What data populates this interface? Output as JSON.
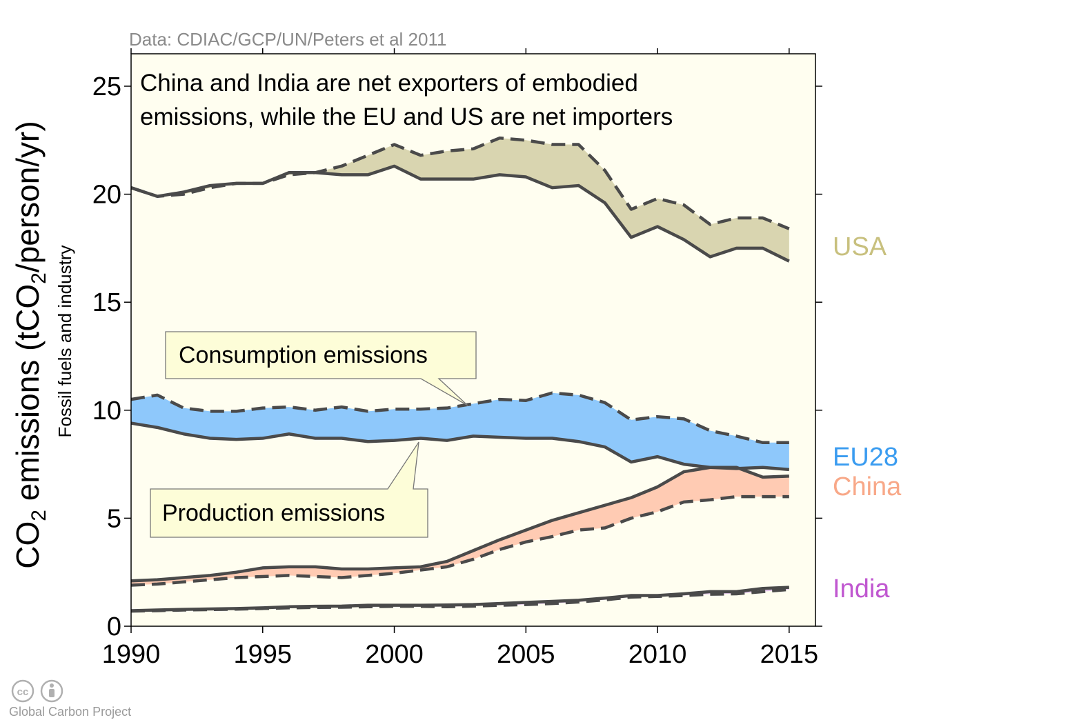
{
  "source_note": "Data: CDIAC/GCP/UN/Peters et al 2011",
  "annotation_line1": "China and India are net exporters of embodied",
  "annotation_line2": "emissions, while the EU and US are net importers",
  "callout_consumption": "Consumption emissions",
  "callout_production": "Production emissions",
  "ylabel": {
    "prefix": "CO",
    "sub": "2",
    "middle": " emissions (tCO",
    "sub2": "2",
    "suffix": "/person/yr)",
    "secondary": "Fossil fuels and industry"
  },
  "credit": "Global Carbon Project",
  "icons": [
    "creative-commons-icon",
    "attribution-icon"
  ],
  "colors": {
    "plot_background": "#fffef0",
    "line": "#4a4a4a",
    "usa_fill": "#d9d5b0",
    "eu_fill": "#8ec8fb",
    "china_fill": "#ffcbb3",
    "overlap_fill": "#c9b3c0",
    "usa_label": "#c8c07e",
    "eu_label": "#3a9cf0",
    "china_label": "#f8a888",
    "india_label": "#c057d0"
  },
  "chart_data": {
    "type": "area",
    "x": [
      1990,
      1991,
      1992,
      1993,
      1994,
      1995,
      1996,
      1997,
      1998,
      1999,
      2000,
      2001,
      2002,
      2003,
      2004,
      2005,
      2006,
      2007,
      2008,
      2009,
      2010,
      2011,
      2012,
      2013,
      2014,
      2015
    ],
    "xlim": [
      1990,
      2016
    ],
    "ylim": [
      0,
      26.5
    ],
    "xticks": [
      1990,
      1995,
      2000,
      2005,
      2010,
      2015
    ],
    "yticks": [
      0,
      5,
      10,
      15,
      20,
      25
    ],
    "series": [
      {
        "name": "USA",
        "color": "#c8c07e",
        "fill": "#d9d5b0",
        "production": [
          20.3,
          19.9,
          20.1,
          20.4,
          20.5,
          20.5,
          21.0,
          21.0,
          20.9,
          20.9,
          21.3,
          20.7,
          20.7,
          20.7,
          20.9,
          20.8,
          20.3,
          20.4,
          19.6,
          18.0,
          18.5,
          17.9,
          17.1,
          17.5,
          17.5,
          16.9
        ],
        "consumption": [
          20.3,
          19.9,
          20.0,
          20.3,
          20.5,
          20.5,
          20.9,
          21.0,
          21.3,
          21.8,
          22.3,
          21.8,
          22.0,
          22.1,
          22.6,
          22.5,
          22.3,
          22.3,
          21.1,
          19.3,
          19.8,
          19.5,
          18.6,
          18.9,
          18.9,
          18.4
        ]
      },
      {
        "name": "EU28",
        "color": "#3a9cf0",
        "fill": "#8ec8fb",
        "production": [
          9.4,
          9.2,
          8.9,
          8.7,
          8.65,
          8.7,
          8.9,
          8.7,
          8.7,
          8.55,
          8.6,
          8.7,
          8.6,
          8.8,
          8.75,
          8.7,
          8.7,
          8.55,
          8.3,
          7.6,
          7.85,
          7.5,
          7.35,
          7.3,
          7.35,
          7.25
        ],
        "consumption": [
          10.5,
          10.7,
          10.1,
          9.95,
          9.95,
          10.1,
          10.15,
          10.0,
          10.15,
          9.95,
          10.05,
          10.05,
          10.1,
          10.3,
          10.5,
          10.45,
          10.8,
          10.7,
          10.35,
          9.55,
          9.7,
          9.6,
          9.05,
          8.8,
          8.5,
          8.5
        ]
      },
      {
        "name": "China",
        "color": "#f8a888",
        "fill": "#ffcbb3",
        "production": [
          2.1,
          2.15,
          2.25,
          2.35,
          2.5,
          2.7,
          2.75,
          2.75,
          2.65,
          2.65,
          2.7,
          2.75,
          3.0,
          3.5,
          4.0,
          4.45,
          4.9,
          5.25,
          5.6,
          5.95,
          6.45,
          7.15,
          7.35,
          7.35,
          6.9,
          6.95
        ],
        "consumption": [
          1.9,
          1.95,
          2.05,
          2.15,
          2.25,
          2.3,
          2.35,
          2.3,
          2.25,
          2.35,
          2.45,
          2.6,
          2.75,
          3.1,
          3.55,
          3.9,
          4.15,
          4.45,
          4.55,
          5.0,
          5.3,
          5.75,
          5.85,
          6.0,
          6.0,
          6.0
        ]
      },
      {
        "name": "India",
        "color": "#c057d0",
        "fill": "#e3c6ea",
        "production": [
          0.72,
          0.75,
          0.78,
          0.8,
          0.82,
          0.85,
          0.9,
          0.92,
          0.93,
          0.97,
          0.97,
          0.97,
          0.98,
          1.0,
          1.05,
          1.1,
          1.15,
          1.2,
          1.3,
          1.42,
          1.42,
          1.5,
          1.6,
          1.6,
          1.75,
          1.8
        ],
        "consumption": [
          0.7,
          0.72,
          0.75,
          0.77,
          0.79,
          0.82,
          0.85,
          0.87,
          0.88,
          0.9,
          0.92,
          0.92,
          0.9,
          0.93,
          0.97,
          1.0,
          1.05,
          1.12,
          1.22,
          1.35,
          1.38,
          1.42,
          1.48,
          1.5,
          1.6,
          1.7
        ]
      }
    ]
  }
}
